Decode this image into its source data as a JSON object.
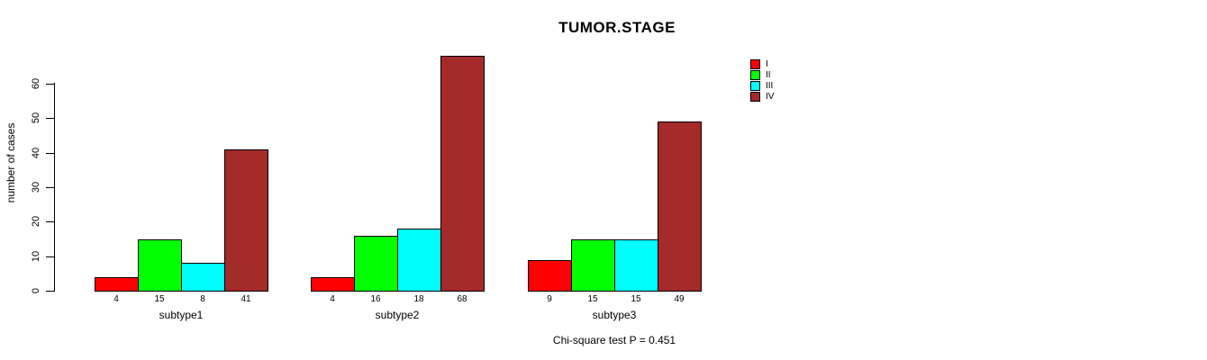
{
  "chart_data": {
    "type": "bar",
    "title": "TUMOR.STAGE",
    "xlabel": "",
    "ylabel": "number of cases",
    "categories": [
      "subtype1",
      "subtype2",
      "subtype3"
    ],
    "series": [
      {
        "name": "I",
        "color": "#FF0000",
        "values": [
          4,
          4,
          9
        ]
      },
      {
        "name": "II",
        "color": "#00FF00",
        "values": [
          15,
          16,
          15
        ]
      },
      {
        "name": "III",
        "color": "#00FFFF",
        "values": [
          8,
          18,
          15
        ]
      },
      {
        "name": "IV",
        "color": "#A52A2A",
        "values": [
          41,
          68,
          49
        ]
      }
    ],
    "bar_value_labels": [
      [
        "4",
        "15",
        "8",
        "41"
      ],
      [
        "4",
        "16",
        "18",
        "68"
      ],
      [
        "9",
        "15",
        "15",
        "49"
      ]
    ],
    "yticks": [
      0,
      10,
      20,
      30,
      40,
      50,
      60
    ],
    "ylim": [
      0,
      68
    ],
    "grid": false,
    "legend_position": "top-right",
    "annotation": "Chi-square test P = 0.451",
    "colors": {
      "background": "#FFFFFF",
      "axis": "#000000",
      "text": "#000000"
    }
  }
}
